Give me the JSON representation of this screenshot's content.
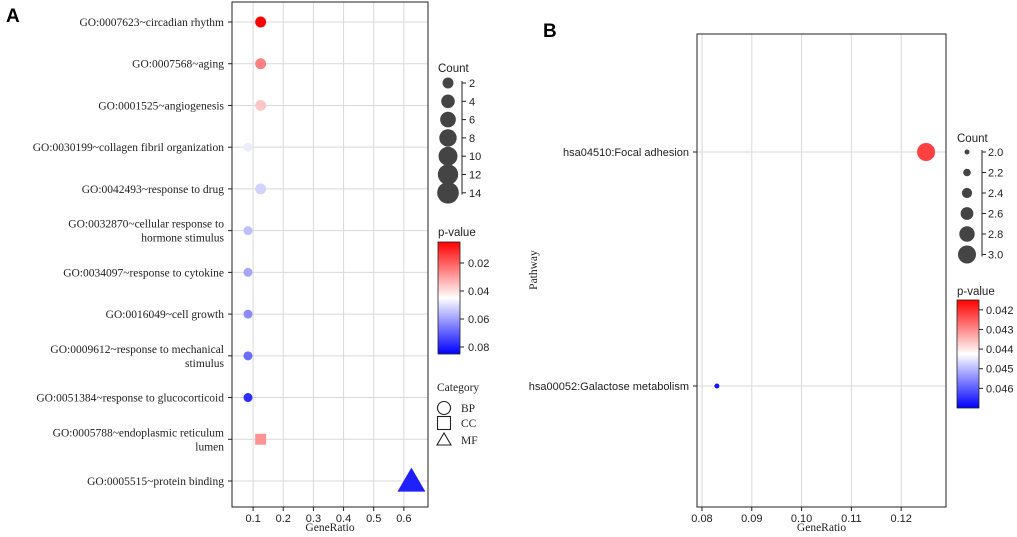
{
  "chart_data": [
    {
      "panel": "A",
      "type": "scatter",
      "xlabel": "GeneRatio",
      "ylabel": "",
      "xlim": [
        0.03,
        0.68
      ],
      "x_ticks": [
        0.1,
        0.2,
        0.3,
        0.4,
        0.5,
        0.6
      ],
      "grid": true,
      "terms": [
        {
          "label": [
            "GO:0007623~circadian rhythm"
          ],
          "x": 0.125,
          "count": 2,
          "pvalue": 0.005,
          "category": "BP"
        },
        {
          "label": [
            "GO:0007568~aging"
          ],
          "x": 0.125,
          "count": 2,
          "pvalue": 0.025,
          "category": "BP"
        },
        {
          "label": [
            "GO:0001525~angiogenesis"
          ],
          "x": 0.125,
          "count": 2,
          "pvalue": 0.036,
          "category": "BP"
        },
        {
          "label": [
            "GO:0030199~collagen fibril organization"
          ],
          "x": 0.083,
          "count": 1,
          "pvalue": 0.048,
          "category": "BP"
        },
        {
          "label": [
            "GO:0042493~response to drug"
          ],
          "x": 0.125,
          "count": 2,
          "pvalue": 0.052,
          "category": "BP"
        },
        {
          "label": [
            "GO:0032870~cellular response to",
            "hormone stimulus"
          ],
          "x": 0.083,
          "count": 1,
          "pvalue": 0.055,
          "category": "BP"
        },
        {
          "label": [
            "GO:0034097~response to cytokine"
          ],
          "x": 0.083,
          "count": 1,
          "pvalue": 0.059,
          "category": "BP"
        },
        {
          "label": [
            "GO:0016049~cell growth"
          ],
          "x": 0.083,
          "count": 1,
          "pvalue": 0.063,
          "category": "BP"
        },
        {
          "label": [
            "GO:0009612~response to mechanical",
            "stimulus"
          ],
          "x": 0.083,
          "count": 1,
          "pvalue": 0.068,
          "category": "BP"
        },
        {
          "label": [
            "GO:0051384~response to glucocorticoid"
          ],
          "x": 0.083,
          "count": 1,
          "pvalue": 0.078,
          "category": "BP"
        },
        {
          "label": [
            "GO:0005788~endoplasmic reticulum",
            "lumen"
          ],
          "x": 0.125,
          "count": 2,
          "pvalue": 0.028,
          "category": "CC"
        },
        {
          "label": [
            "GO:0005515~protein binding"
          ],
          "x": 0.625,
          "count": 15,
          "pvalue": 0.08,
          "category": "MF"
        }
      ],
      "count_legend": {
        "title": "Count",
        "values": [
          2,
          4,
          6,
          8,
          10,
          12,
          14
        ]
      },
      "pvalue_legend": {
        "title": "p-value",
        "min": 0.005,
        "max": 0.085,
        "ticks": [
          0.02,
          0.04,
          0.06,
          0.08
        ]
      },
      "category_legend": {
        "title": "Category",
        "items": [
          "BP",
          "CC",
          "MF"
        ]
      }
    },
    {
      "panel": "B",
      "type": "scatter",
      "xlabel": "GeneRatio",
      "ylabel": "Pathway",
      "xlim": [
        0.079,
        0.129
      ],
      "x_ticks": [
        0.08,
        0.09,
        0.1,
        0.11,
        0.12
      ],
      "x_tick_labels": [
        "0.08",
        "0.09",
        "0.10",
        "0.11",
        "0.12"
      ],
      "grid": true,
      "pathways": [
        {
          "label": "hsa04510:Focal adhesion",
          "x": 0.125,
          "count": 3,
          "pvalue": 0.0422
        },
        {
          "label": "hsa00052:Galactose metabolism",
          "x": 0.083,
          "count": 2,
          "pvalue": 0.0468
        }
      ],
      "count_legend": {
        "title": "Count",
        "values": [
          2.0,
          2.2,
          2.4,
          2.6,
          2.8,
          3.0
        ],
        "labels": [
          "2.0",
          "2.2",
          "2.4",
          "2.6",
          "2.8",
          "3.0"
        ]
      },
      "pvalue_legend": {
        "title": "p-value",
        "min": 0.0415,
        "max": 0.047,
        "ticks": [
          0.042,
          0.043,
          0.044,
          0.045,
          0.046
        ]
      }
    }
  ],
  "labels": {
    "panel_a": "A",
    "panel_b": "B"
  },
  "colors": {
    "low": "#ff0000",
    "mid": "#ffffff",
    "high": "#0000ff",
    "size_legend": "#444444",
    "grid": "#d9d9d9"
  }
}
